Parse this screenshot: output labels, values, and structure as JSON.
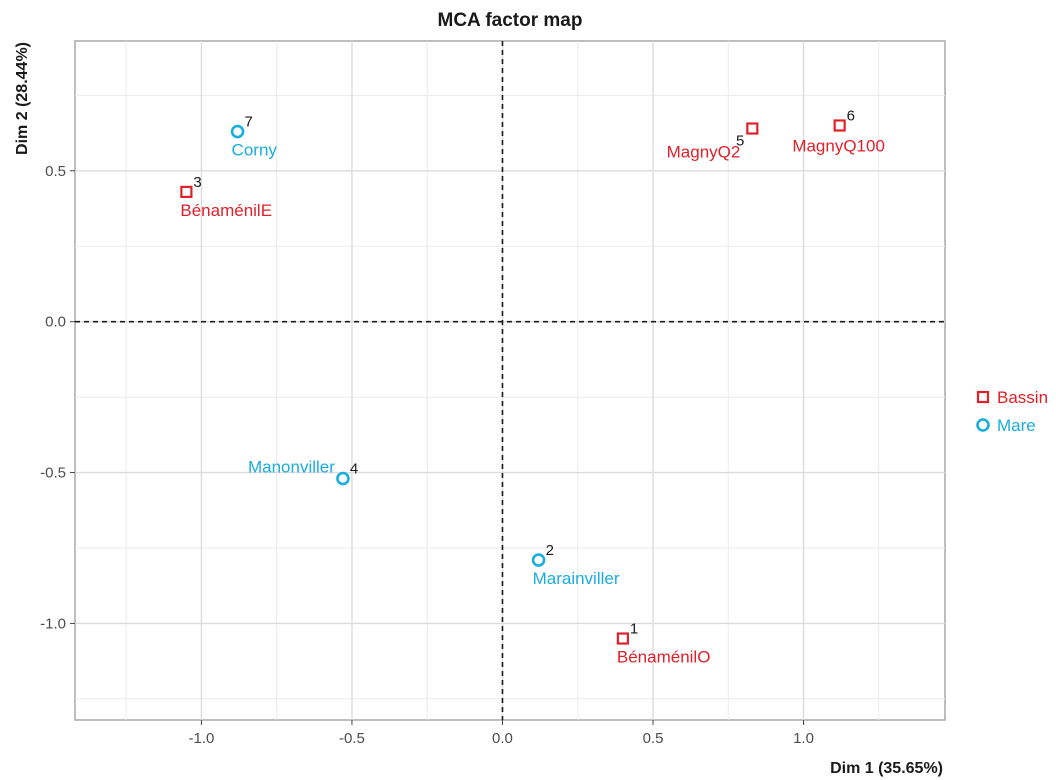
{
  "chart_data": {
    "type": "scatter",
    "title": "MCA factor map",
    "xlabel": "Dim 1 (35.65%)",
    "ylabel": "Dim 2 (28.44%)",
    "xlim": [
      -1.42,
      1.47
    ],
    "ylim": [
      -1.32,
      0.93
    ],
    "x_ticks": [
      -1.0,
      -0.5,
      0.0,
      0.5,
      1.0
    ],
    "x_tick_labels": [
      "-1.0",
      "-0.5",
      "0.0",
      "0.5",
      "1.0"
    ],
    "y_ticks": [
      -1.0,
      -0.5,
      0.0,
      0.5
    ],
    "y_tick_labels": [
      "-1.0",
      "-0.5",
      "0.0",
      "0.5"
    ],
    "grid": true,
    "reference_lines": {
      "x": 0,
      "y": 0,
      "style": "dashed"
    },
    "legend": {
      "position": "right",
      "entries": [
        {
          "name": "Bassin",
          "group": "Bassin"
        },
        {
          "name": "Mare",
          "group": "Mare"
        }
      ]
    },
    "groups": {
      "Bassin": {
        "shape": "square",
        "color": "#e0212a"
      },
      "Mare": {
        "shape": "circle",
        "color": "#1aaede"
      }
    },
    "points": [
      {
        "id": "1",
        "name": "BénaménilO",
        "group": "Bassin",
        "x": 0.4,
        "y": -1.05,
        "num_pos": "top-right",
        "name_pos": "below-right"
      },
      {
        "id": "2",
        "name": "Marainviller",
        "group": "Mare",
        "x": 0.12,
        "y": -0.79,
        "num_pos": "top-right",
        "name_pos": "below-right"
      },
      {
        "id": "3",
        "name": "BénaménilE",
        "group": "Bassin",
        "x": -1.05,
        "y": 0.43,
        "num_pos": "top-right",
        "name_pos": "below-right"
      },
      {
        "id": "4",
        "name": "Manonviller",
        "group": "Mare",
        "x": -0.53,
        "y": -0.52,
        "num_pos": "top-right",
        "name_pos": "left"
      },
      {
        "id": "5",
        "name": "MagnyQ2",
        "group": "Bassin",
        "x": 0.83,
        "y": 0.64,
        "num_pos": "bottom-left",
        "name_pos": "below-left"
      },
      {
        "id": "6",
        "name": "MagnyQ100",
        "group": "Bassin",
        "x": 1.12,
        "y": 0.65,
        "num_pos": "top-right",
        "name_pos": "below"
      },
      {
        "id": "7",
        "name": "Corny",
        "group": "Mare",
        "x": -0.88,
        "y": 0.63,
        "num_pos": "top-right",
        "name_pos": "below-right"
      }
    ]
  }
}
